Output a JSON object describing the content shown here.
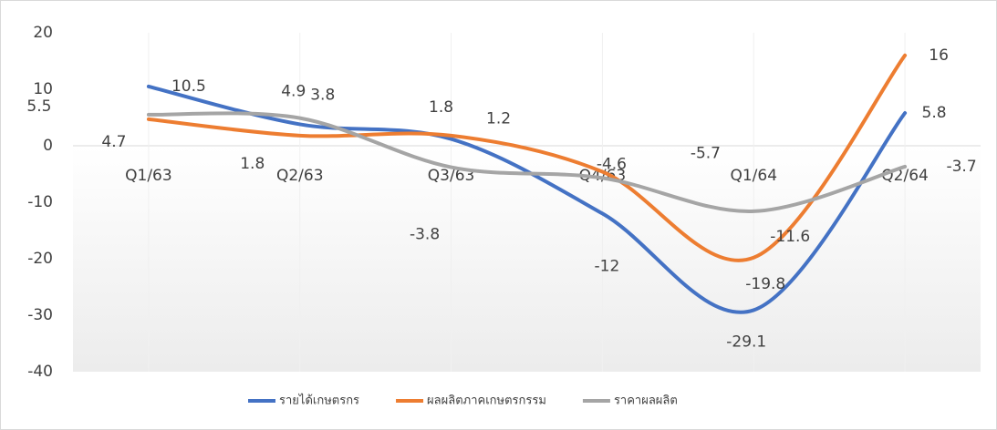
{
  "chart_data": {
    "type": "line",
    "categories": [
      "Q1/63",
      "Q2/63",
      "Q3/63",
      "Q4/63",
      "Q1/64",
      "Q2/64"
    ],
    "series": [
      {
        "name": "รายได้เกษตรกร",
        "color": "#4472c4",
        "values": [
          10.5,
          3.8,
          1.2,
          -12,
          -29.1,
          5.8
        ]
      },
      {
        "name": "ผลผลิตภาคเกษตรกรรม",
        "color": "#ed7d31",
        "values": [
          4.7,
          1.8,
          1.8,
          -4.6,
          -19.8,
          16
        ]
      },
      {
        "name": "ราคาผลผลิต",
        "color": "#a5a5a5",
        "values": [
          5.5,
          4.9,
          -3.8,
          -5.7,
          -11.6,
          -3.7
        ]
      }
    ],
    "ylim": [
      -40,
      20
    ],
    "yticks": [
      -40,
      -30,
      -20,
      -10,
      0,
      10,
      20
    ],
    "legend": "bottom"
  }
}
